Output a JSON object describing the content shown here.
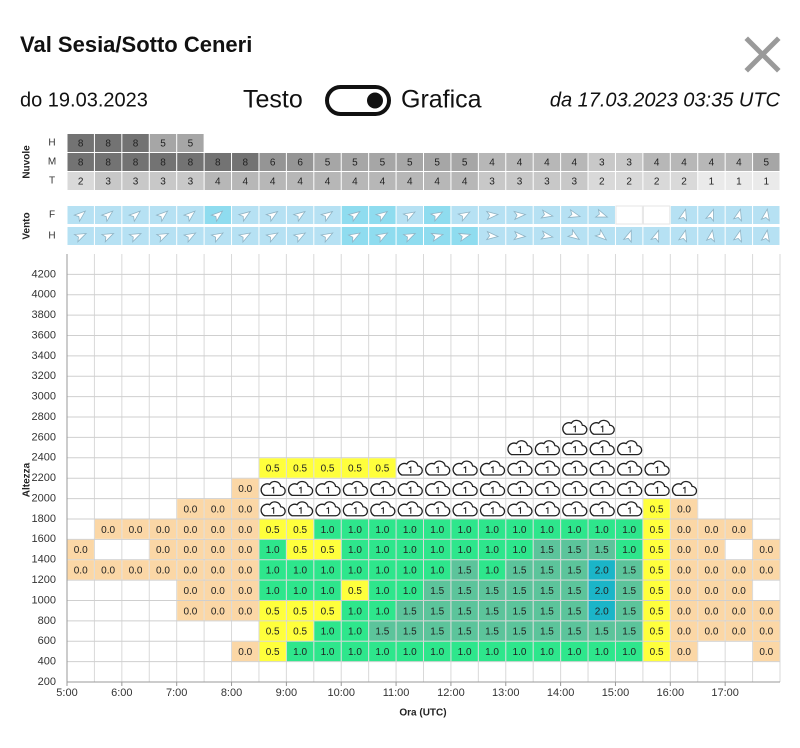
{
  "header": {
    "title": "Val Sesia/Sotto Ceneri"
  },
  "toolbar": {
    "valid_until": "do 19.03.2023",
    "left_label": "Testo",
    "right_label": "Grafica",
    "issued": "da 17.03.2023 03:35 UTC"
  },
  "clouds": {
    "label": "Nuvole",
    "rows": [
      {
        "name": "H",
        "values": [
          8,
          8,
          8,
          5,
          5,
          null,
          null,
          null,
          null,
          null,
          null,
          null,
          null,
          null,
          null,
          null,
          null,
          null,
          null,
          null,
          null,
          null,
          null,
          null,
          null,
          null
        ]
      },
      {
        "name": "M",
        "values": [
          8,
          8,
          8,
          8,
          8,
          8,
          8,
          6,
          6,
          5,
          5,
          5,
          5,
          5,
          5,
          4,
          4,
          4,
          4,
          3,
          3,
          4,
          4,
          4,
          4,
          5
        ]
      },
      {
        "name": "T",
        "values": [
          2,
          3,
          3,
          3,
          3,
          4,
          4,
          4,
          4,
          4,
          4,
          4,
          4,
          4,
          4,
          3,
          3,
          3,
          3,
          2,
          2,
          2,
          2,
          1,
          1,
          1
        ]
      }
    ]
  },
  "wind": {
    "label": "Vento",
    "rows": [
      {
        "name": "F"
      },
      {
        "name": "H"
      }
    ]
  },
  "chart_data": {
    "type": "heatmap",
    "ylabel": "Altezza",
    "xlabel": "Ora (UTC)",
    "ylim": [
      200,
      4400
    ],
    "yticks": [
      200,
      400,
      600,
      800,
      1000,
      1200,
      1400,
      1600,
      1800,
      2000,
      2200,
      2400,
      2600,
      2800,
      3000,
      3200,
      3400,
      3600,
      3800,
      4000,
      4200
    ],
    "xticks": [
      "5:00",
      "6:00",
      "7:00",
      "8:00",
      "9:00",
      "10:00",
      "11:00",
      "12:00",
      "13:00",
      "14:00",
      "15:00",
      "16:00",
      "17:00"
    ],
    "color_scale": [
      "#fbd7a6",
      "#ffff3c",
      "#2ee68c",
      "#5cc49b",
      "#1bb5c8"
    ],
    "rows": [
      {
        "y": 400,
        "values": [
          null,
          null,
          null,
          null,
          null,
          null,
          0,
          0.5,
          1,
          1,
          1,
          1,
          1,
          1,
          1,
          1,
          1,
          1,
          1,
          1,
          1,
          0.5,
          0,
          null,
          null,
          0
        ],
        "value_labels": [
          null,
          null,
          null,
          null,
          null,
          null,
          "0.0",
          "0.5",
          "1.0",
          "1.0",
          "1.0",
          "1.0",
          "1.0",
          "1.0",
          "1.0",
          "1.0",
          "1.0",
          "1.0",
          "1.0",
          "1.0",
          "1.0",
          "0.5",
          "0.0",
          null,
          null,
          "0.0"
        ]
      },
      {
        "y": 600,
        "values": [
          null,
          null,
          null,
          null,
          null,
          null,
          null,
          0.5,
          0.5,
          1,
          1,
          1.5,
          1.5,
          1.5,
          1.5,
          1.5,
          1.5,
          1.5,
          1.5,
          1.5,
          1.5,
          0.5,
          0,
          0,
          0,
          0
        ],
        "value_labels": [
          null,
          null,
          null,
          null,
          null,
          null,
          null,
          "0.5",
          "0.5",
          "1.0",
          "1.0",
          "1.5",
          "1.5",
          "1.5",
          "1.5",
          "1.5",
          "1.5",
          "1.5",
          "1.5",
          "1.5",
          "1.5",
          "0.5",
          "0.0",
          "0.0",
          "0.0",
          "0.0"
        ]
      },
      {
        "y": 800,
        "values": [
          null,
          null,
          null,
          null,
          0,
          0,
          0,
          0.5,
          0.5,
          0.5,
          1,
          1,
          1.5,
          1.5,
          1.5,
          1.5,
          1.5,
          1.5,
          1.5,
          2,
          1.5,
          0.5,
          0,
          0,
          0,
          0
        ],
        "value_labels": [
          null,
          null,
          null,
          null,
          "0.0",
          "0.0",
          "0.0",
          "0.5",
          "0.5",
          "0.5",
          "1.0",
          "1.0",
          "1.5",
          "1.5",
          "1.5",
          "1.5",
          "1.5",
          "1.5",
          "1.5",
          "2.0",
          "1.5",
          "0.5",
          "0.0",
          "0.0",
          "0.0",
          "0.0"
        ]
      },
      {
        "y": 1000,
        "values": [
          null,
          null,
          null,
          null,
          0,
          0,
          0,
          1,
          1,
          1,
          0.5,
          1,
          1,
          1.5,
          1.5,
          1.5,
          1.5,
          1.5,
          1.5,
          2,
          1.5,
          0.5,
          0,
          0,
          0,
          null
        ],
        "value_labels": [
          null,
          null,
          null,
          null,
          "0.0",
          "0.0",
          "0.0",
          "1.0",
          "1.0",
          "1.0",
          "0.5",
          "1.0",
          "1.0",
          "1.5",
          "1.5",
          "1.5",
          "1.5",
          "1.5",
          "1.5",
          "2.0",
          "1.5",
          "0.5",
          "0.0",
          "0.0",
          "0.0",
          null
        ]
      },
      {
        "y": 1200,
        "values": [
          0,
          0,
          0,
          0,
          0,
          0,
          0,
          1,
          1,
          1,
          1,
          1,
          1,
          1,
          1.5,
          1,
          1.5,
          1.5,
          1.5,
          2,
          1.5,
          0.5,
          0,
          0,
          0,
          0
        ],
        "value_labels": [
          "0.0",
          "0.0",
          "0.0",
          "0.0",
          "0.0",
          "0.0",
          "0.0",
          "1.0",
          "1.0",
          "1.0",
          "1.0",
          "1.0",
          "1.0",
          "1.0",
          "1.5",
          "1.0",
          "1.5",
          "1.5",
          "1.5",
          "2.0",
          "1.5",
          "0.5",
          "0.0",
          "0.0",
          "0.0",
          "0.0"
        ]
      },
      {
        "y": 1400,
        "values": [
          0,
          null,
          null,
          0,
          0,
          0,
          0,
          1,
          0.5,
          0.5,
          1,
          1,
          1,
          1,
          1,
          1,
          1,
          1.5,
          1.5,
          1.5,
          1,
          0.5,
          0,
          0,
          null,
          0
        ],
        "value_labels": [
          "0.0",
          null,
          null,
          "0.0",
          "0.0",
          "0.0",
          "0.0",
          "1.0",
          "0.5",
          "0.5",
          "1.0",
          "1.0",
          "1.0",
          "1.0",
          "1.0",
          "1.0",
          "1.0",
          "1.5",
          "1.5",
          "1.5",
          "1.0",
          "0.5",
          "0.0",
          "0.0",
          null,
          "0.0"
        ]
      },
      {
        "y": 1600,
        "values": [
          null,
          0,
          0,
          0,
          0,
          0,
          0,
          0.5,
          0.5,
          1,
          1,
          1,
          1,
          1,
          1,
          1,
          1,
          1,
          1,
          1,
          1,
          0.5,
          0,
          0,
          0,
          null
        ],
        "value_labels": [
          null,
          "0.0",
          "0.0",
          "0.0",
          "0.0",
          "0.0",
          "0.0",
          "0.5",
          "0.5",
          "1.0",
          "1.0",
          "1.0",
          "1.0",
          "1.0",
          "1.0",
          "1.0",
          "1.0",
          "1.0",
          "1.0",
          "1.0",
          "1.0",
          "0.5",
          "0.0",
          "0.0",
          "0.0",
          null
        ]
      },
      {
        "y": 1800,
        "values": [
          null,
          null,
          null,
          null,
          0,
          0,
          0,
          null,
          null,
          null,
          null,
          null,
          null,
          null,
          null,
          null,
          null,
          null,
          null,
          null,
          null,
          0.5,
          0,
          null,
          null,
          null
        ],
        "value_labels": [
          null,
          null,
          null,
          null,
          "0.0",
          "0.0",
          "0.0",
          null,
          null,
          null,
          null,
          null,
          null,
          null,
          null,
          null,
          null,
          null,
          null,
          null,
          null,
          "0.5",
          "0.0",
          null,
          null,
          null
        ]
      },
      {
        "y": 2000,
        "values": [
          null,
          null,
          null,
          null,
          null,
          null,
          0,
          null,
          null,
          null,
          null,
          null,
          null,
          null,
          null,
          null,
          null,
          null,
          null,
          null,
          null,
          null,
          null,
          null,
          null,
          null
        ],
        "value_labels": [
          null,
          null,
          null,
          null,
          null,
          null,
          "0.0",
          null,
          null,
          null,
          null,
          null,
          null,
          null,
          null,
          null,
          null,
          null,
          null,
          null,
          null,
          null,
          null,
          null,
          null,
          null
        ]
      },
      {
        "y": 2200,
        "values": [
          null,
          null,
          null,
          null,
          null,
          null,
          null,
          0.5,
          0.5,
          0.5,
          0.5,
          0.5,
          null,
          null,
          null,
          null,
          null,
          null,
          null,
          null,
          null,
          null,
          null,
          null,
          null,
          null
        ],
        "value_labels": [
          null,
          null,
          null,
          null,
          null,
          null,
          null,
          "0.5",
          "0.5",
          "0.5",
          "0.5",
          "0.5",
          null,
          null,
          null,
          null,
          null,
          null,
          null,
          null,
          null,
          null,
          null,
          null,
          null,
          null
        ]
      }
    ]
  }
}
